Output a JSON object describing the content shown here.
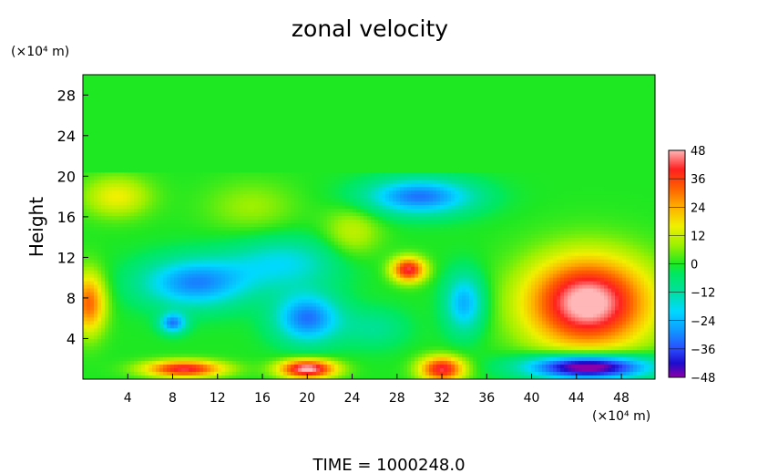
{
  "chart_data": {
    "type": "heatmap",
    "title": "zonal velocity",
    "ylabel": "Height",
    "xlabel": "",
    "x_unit_label": "(×10⁴ m)",
    "y_unit_label": "(×10⁴ m)",
    "footer": "TIME  =  1000248.0",
    "x_range": [
      0,
      51
    ],
    "y_range": [
      0,
      30
    ],
    "x_ticks": [
      4,
      8,
      12,
      16,
      20,
      24,
      28,
      32,
      36,
      40,
      44,
      48
    ],
    "y_ticks": [
      4,
      8,
      12,
      16,
      20,
      24,
      28
    ],
    "colorbar": {
      "ticks": [
        48,
        36,
        24,
        12,
        0,
        -12,
        -24,
        -36,
        -48
      ],
      "range": [
        -48,
        48
      ],
      "colors": [
        {
          "value": -48,
          "color": "#8b00a8"
        },
        {
          "value": -42,
          "color": "#1c0ccd"
        },
        {
          "value": -36,
          "color": "#2b4cff"
        },
        {
          "value": -28,
          "color": "#0f9bff"
        },
        {
          "value": -20,
          "color": "#00d9ff"
        },
        {
          "value": -12,
          "color": "#00e0a0"
        },
        {
          "value": -4,
          "color": "#00e860"
        },
        {
          "value": 0,
          "color": "#1ee822"
        },
        {
          "value": 8,
          "color": "#9ef000"
        },
        {
          "value": 16,
          "color": "#f0f000"
        },
        {
          "value": 24,
          "color": "#ffb000"
        },
        {
          "value": 32,
          "color": "#ff6000"
        },
        {
          "value": 40,
          "color": "#ff2020"
        },
        {
          "value": 48,
          "color": "#ffb7b7"
        }
      ]
    },
    "features": [
      {
        "x": 45,
        "y": 7.5,
        "sx": 5.5,
        "sy": 4.5,
        "value": 52
      },
      {
        "x": 45,
        "y": 1.2,
        "sx": 5.5,
        "sy": 1.2,
        "value": -58
      },
      {
        "x": 20,
        "y": 1.0,
        "sx": 2.5,
        "sy": 0.9,
        "value": 50
      },
      {
        "x": 9,
        "y": 1.0,
        "sx": 3.5,
        "sy": 0.8,
        "value": 42
      },
      {
        "x": 32,
        "y": 1.0,
        "sx": 2.0,
        "sy": 1.2,
        "value": 42
      },
      {
        "x": 0.5,
        "y": 7.5,
        "sx": 1.5,
        "sy": 3,
        "value": 32
      },
      {
        "x": 29,
        "y": 10.8,
        "sx": 1.5,
        "sy": 1.2,
        "value": 42
      },
      {
        "x": 30,
        "y": 18,
        "sx": 5,
        "sy": 1.8,
        "value": -32
      },
      {
        "x": 10,
        "y": 9.5,
        "sx": 5,
        "sy": 2.5,
        "value": -30
      },
      {
        "x": 20,
        "y": 6,
        "sx": 3,
        "sy": 2.5,
        "value": -32
      },
      {
        "x": 34,
        "y": 7.5,
        "sx": 1.8,
        "sy": 3,
        "value": -26
      },
      {
        "x": 8,
        "y": 5.5,
        "sx": 1.2,
        "sy": 1,
        "value": -30
      },
      {
        "x": 18,
        "y": 11.5,
        "sx": 5,
        "sy": 2.5,
        "value": -18
      },
      {
        "x": 24,
        "y": 14.5,
        "sx": 2.5,
        "sy": 2.5,
        "value": 12
      },
      {
        "x": 15,
        "y": 17,
        "sx": 4,
        "sy": 2.5,
        "value": 8
      },
      {
        "x": 3,
        "y": 18,
        "sx": 3,
        "sy": 2,
        "value": 16
      },
      {
        "x": 26,
        "y": 5,
        "sx": 3,
        "sy": 2,
        "value": -10
      }
    ]
  }
}
